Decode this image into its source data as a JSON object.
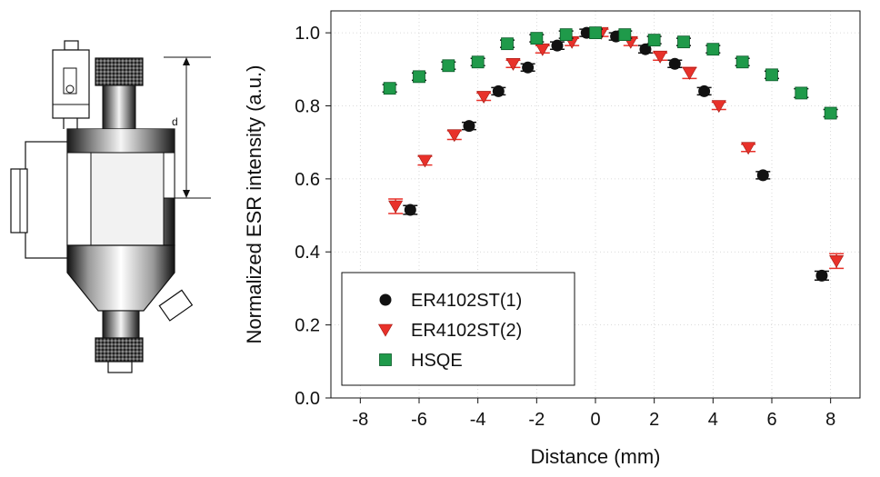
{
  "chart_data": {
    "type": "scatter",
    "xlabel": "Distance (mm)",
    "ylabel": "Normalized ESR intensity (a.u.)",
    "xlim": [
      -9,
      9
    ],
    "ylim": [
      0.0,
      1.06
    ],
    "x_ticks": [
      -8,
      -6,
      -4,
      -2,
      0,
      2,
      4,
      6,
      8
    ],
    "x_tick_labels": [
      "-8",
      "-6",
      "-4",
      "-2",
      "0",
      "2",
      "4",
      "6",
      "8"
    ],
    "y_ticks": [
      0.0,
      0.2,
      0.4,
      0.6,
      0.8,
      1.0
    ],
    "y_tick_labels": [
      "0.0",
      "0.2",
      "0.4",
      "0.6",
      "0.8",
      "1.0"
    ],
    "grid": true,
    "legend_position": "bottom-left",
    "series": [
      {
        "name": "ER4102ST(1)",
        "marker": "circle",
        "color": "#111111",
        "error_color": "#111111",
        "points": [
          {
            "x": -6.3,
            "y": 0.515,
            "err": 0.012
          },
          {
            "x": -4.3,
            "y": 0.745,
            "err": 0.01
          },
          {
            "x": -3.3,
            "y": 0.84,
            "err": 0.01
          },
          {
            "x": -2.3,
            "y": 0.905,
            "err": 0.01
          },
          {
            "x": -1.3,
            "y": 0.965,
            "err": 0.01
          },
          {
            "x": -0.3,
            "y": 1.0,
            "err": 0.01
          },
          {
            "x": 0.7,
            "y": 0.99,
            "err": 0.01
          },
          {
            "x": 1.7,
            "y": 0.955,
            "err": 0.01
          },
          {
            "x": 2.7,
            "y": 0.915,
            "err": 0.01
          },
          {
            "x": 3.7,
            "y": 0.84,
            "err": 0.01
          },
          {
            "x": 5.7,
            "y": 0.61,
            "err": 0.01
          },
          {
            "x": 7.7,
            "y": 0.335,
            "err": 0.012
          }
        ]
      },
      {
        "name": "ER4102ST(2)",
        "marker": "triangle-down",
        "color": "#e8312a",
        "error_color": "#e8312a",
        "points": [
          {
            "x": -6.8,
            "y": 0.525,
            "err": 0.02
          },
          {
            "x": -5.8,
            "y": 0.65,
            "err": 0.012
          },
          {
            "x": -4.8,
            "y": 0.72,
            "err": 0.012
          },
          {
            "x": -3.8,
            "y": 0.825,
            "err": 0.01
          },
          {
            "x": -2.8,
            "y": 0.915,
            "err": 0.01
          },
          {
            "x": -1.8,
            "y": 0.955,
            "err": 0.01
          },
          {
            "x": -0.8,
            "y": 0.975,
            "err": 0.01
          },
          {
            "x": 0.2,
            "y": 1.0,
            "err": 0.01
          },
          {
            "x": 1.2,
            "y": 0.975,
            "err": 0.01
          },
          {
            "x": 2.2,
            "y": 0.935,
            "err": 0.01
          },
          {
            "x": 3.2,
            "y": 0.89,
            "err": 0.015
          },
          {
            "x": 4.2,
            "y": 0.8,
            "err": 0.01
          },
          {
            "x": 5.2,
            "y": 0.685,
            "err": 0.01
          },
          {
            "x": 8.2,
            "y": 0.375,
            "err": 0.02
          }
        ]
      },
      {
        "name": "HSQE",
        "marker": "square",
        "color": "#1f9a4a",
        "error_color": "#111111",
        "points": [
          {
            "x": -7,
            "y": 0.848,
            "err": 0.01
          },
          {
            "x": -6,
            "y": 0.88,
            "err": 0.01
          },
          {
            "x": -5,
            "y": 0.91,
            "err": 0.01
          },
          {
            "x": -4,
            "y": 0.92,
            "err": 0.01
          },
          {
            "x": -3,
            "y": 0.97,
            "err": 0.01
          },
          {
            "x": -2,
            "y": 0.985,
            "err": 0.01
          },
          {
            "x": -1,
            "y": 0.995,
            "err": 0.01
          },
          {
            "x": 0,
            "y": 1.0,
            "err": 0.01
          },
          {
            "x": 1,
            "y": 0.995,
            "err": 0.01
          },
          {
            "x": 2,
            "y": 0.98,
            "err": 0.01
          },
          {
            "x": 3,
            "y": 0.975,
            "err": 0.01
          },
          {
            "x": 4,
            "y": 0.955,
            "err": 0.01
          },
          {
            "x": 5,
            "y": 0.92,
            "err": 0.01
          },
          {
            "x": 6,
            "y": 0.885,
            "err": 0.01
          },
          {
            "x": 7,
            "y": 0.835,
            "err": 0.012
          },
          {
            "x": 8,
            "y": 0.78,
            "err": 0.01
          }
        ]
      }
    ]
  },
  "diagram": {
    "dimension_label": "d"
  }
}
